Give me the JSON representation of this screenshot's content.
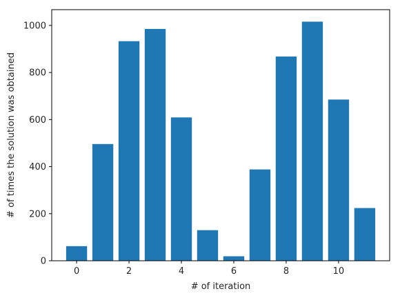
{
  "chart_data": {
    "type": "bar",
    "x": [
      0,
      1,
      2,
      3,
      4,
      5,
      6,
      7,
      8,
      9,
      10,
      11
    ],
    "values": [
      62,
      496,
      933,
      985,
      609,
      130,
      19,
      388,
      868,
      1016,
      685,
      224
    ],
    "xlabel": "# of iteration",
    "ylabel": "# of times the solution was obtained",
    "xlim": [
      -0.95,
      11.95
    ],
    "ylim": [
      0,
      1067
    ],
    "xticks": [
      0,
      2,
      4,
      6,
      8,
      10
    ],
    "yticks": [
      0,
      200,
      400,
      600,
      800,
      1000
    ],
    "grid": false,
    "bar_color": "#1f77b4"
  }
}
